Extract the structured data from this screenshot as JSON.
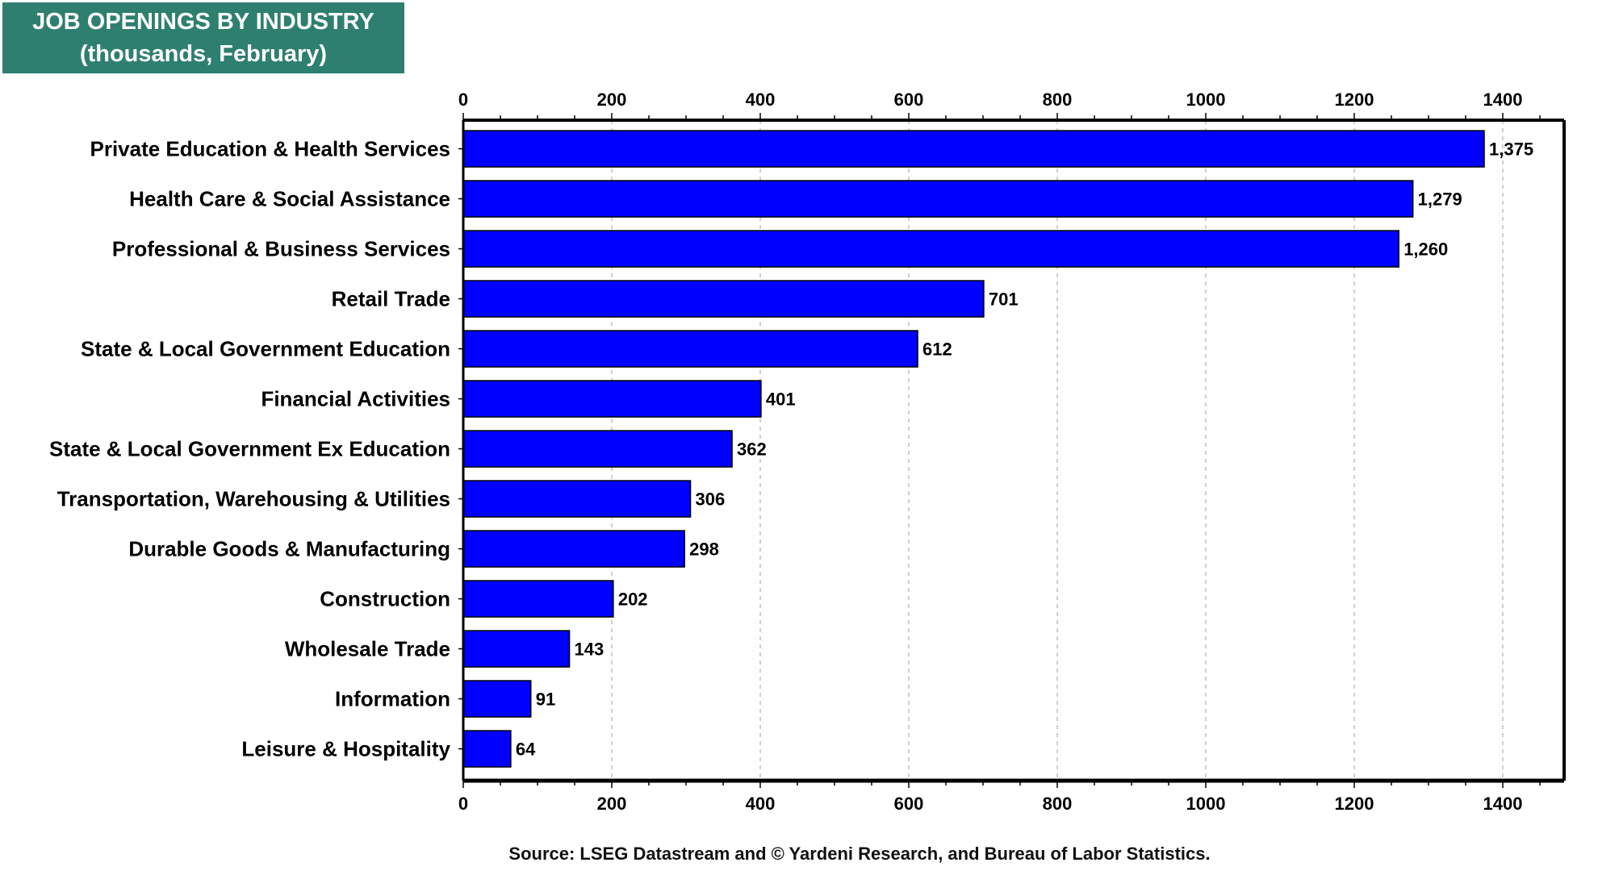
{
  "chart_data": {
    "type": "bar",
    "orientation": "horizontal",
    "title": "JOB OPENINGS BY INDUSTRY",
    "subtitle": "(thousands, February)",
    "categories": [
      "Private Education & Health Services",
      "Health Care & Social Assistance",
      "Professional & Business Services",
      "Retail Trade",
      "State & Local Government Education",
      "Financial Activities",
      "State & Local Government Ex Education",
      "Transportation, Warehousing & Utilities",
      "Durable Goods & Manufacturing",
      "Construction",
      "Wholesale Trade",
      "Information",
      "Leisure & Hospitality"
    ],
    "values": [
      1375,
      1279,
      1260,
      701,
      612,
      401,
      362,
      306,
      298,
      202,
      143,
      91,
      64
    ],
    "data_labels": [
      "1,375",
      "1,279",
      "1,260",
      "701",
      "612",
      "401",
      "362",
      "306",
      "298",
      "202",
      "143",
      "91",
      "64"
    ],
    "xlim": [
      0,
      1480
    ],
    "xticks": [
      0,
      200,
      400,
      600,
      800,
      1000,
      1200,
      1400
    ],
    "xtick_labels": [
      "0",
      "200",
      "400",
      "600",
      "800",
      "1000",
      "1200",
      "1400"
    ],
    "xlabel": "",
    "ylabel": "",
    "grid": "vertical dotted",
    "axis_position": "top and bottom",
    "bar_color": "#0000ff",
    "title_bg_color": "#2e7f70",
    "source": "Source: LSEG Datastream and © Yardeni Research, and Bureau of Labor Statistics."
  }
}
